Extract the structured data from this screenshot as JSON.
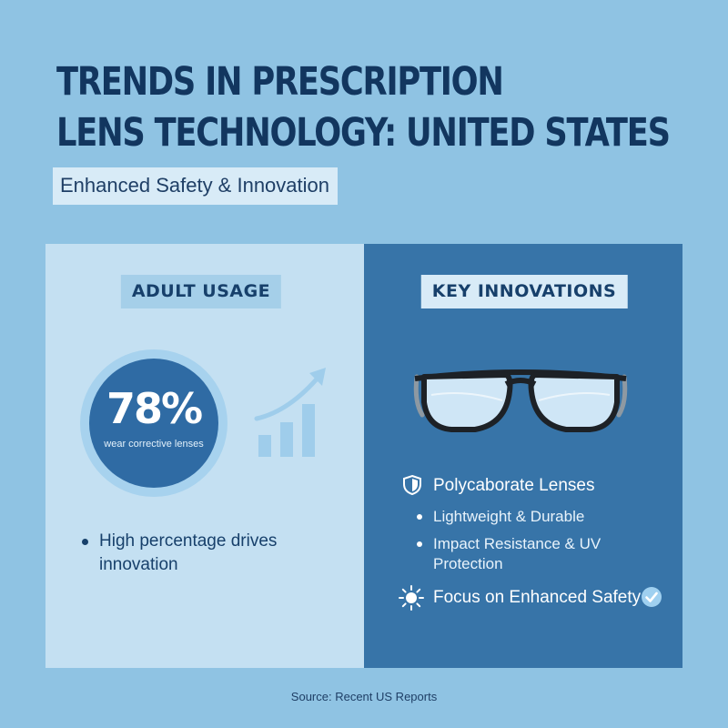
{
  "header": {
    "title_line1": "TRENDS IN PRESCRIPTION",
    "title_line2": "LENS TECHNOLOGY: UNITED STATES",
    "subtitle": "Enhanced Safety & Innovation"
  },
  "left_panel": {
    "heading": "ADULT USAGE",
    "stat_value": "78%",
    "stat_label": "wear corrective lenses",
    "bullet": "High percentage drives innovation"
  },
  "right_panel": {
    "heading": "KEY INNOVATIONS",
    "feature_1": "Polycaborate Lenses",
    "sub_items": [
      "Lightweight & Durable",
      "Impact Resistance & UV Protection"
    ],
    "feature_2": "Focus on Enhanced Safety"
  },
  "footer": {
    "source": "Source: Recent US Reports"
  },
  "icons": [
    "growth-chart-icon",
    "eyeglasses-icon",
    "shield-icon",
    "sun-icon",
    "check-circle-icon"
  ],
  "colors": {
    "background": "#8fc3e3",
    "title": "#12365f",
    "left_panel": "#c4e0f2",
    "right_panel": "#3774a8",
    "stat_circle": "#2f6ba4"
  }
}
